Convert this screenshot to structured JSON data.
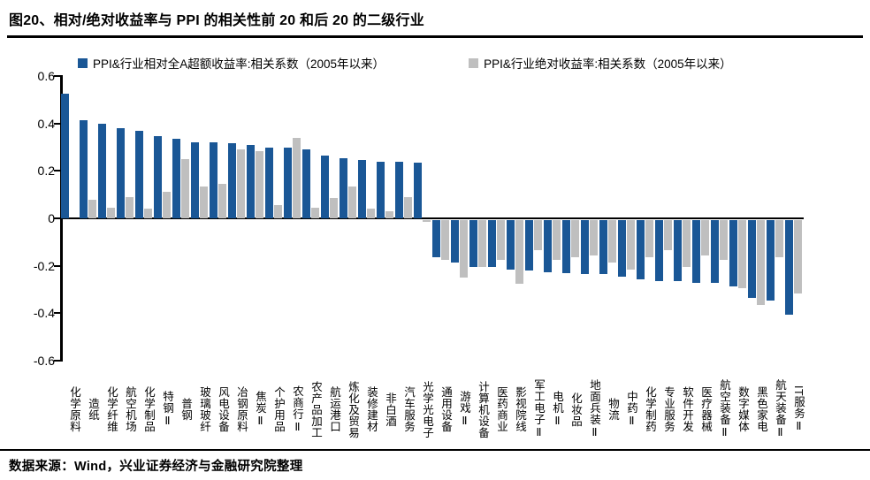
{
  "header": {
    "title": "图20、相对/绝对收益率与 PPI 的相关性前 20 和后 20 的二级行业"
  },
  "footer": {
    "source": "数据来源：Wind，兴业证券经济与金融研究院整理"
  },
  "colors": {
    "relative_series": "#1A5796",
    "absolute_series": "#BFBFBF",
    "axis": "#000000",
    "background": "#FFFFFF"
  },
  "chart_data": {
    "type": "bar",
    "title": "",
    "grid": false,
    "legend_position": "top",
    "ylim": [
      -0.6,
      0.6
    ],
    "ytick_labels": [
      "0.6",
      "0.4",
      "0.2",
      "0",
      "-0.2",
      "-0.4",
      "-0.6"
    ],
    "yticks": [
      0.6,
      0.4,
      0.2,
      0,
      -0.2,
      -0.4,
      -0.6
    ],
    "categories": [
      "化学原料",
      "造纸",
      "化学纤维",
      "航空机场",
      "化学制品",
      "特钢Ⅱ",
      "普钢",
      "玻璃玻纤",
      "风电设备",
      "冶钢原料",
      "焦炭Ⅱ",
      "个护用品",
      "农商行Ⅱ",
      "农产品加工",
      "航运港口",
      "炼化及贸易",
      "装修建材",
      "非白酒",
      "汽车服务",
      "光学光电子",
      "通用设备",
      "游戏Ⅱ",
      "计算机设备",
      "医药商业",
      "影视院线",
      "军工电子Ⅱ",
      "电机Ⅱ",
      "化妆品",
      "地面兵装Ⅱ",
      "物流",
      "中药Ⅱ",
      "化学制药",
      "专业服务",
      "软件开发",
      "医疗器械",
      "航空装备Ⅱ",
      "数字媒体",
      "黑色家电",
      "航天装备Ⅱ",
      "IT服务Ⅱ"
    ],
    "series": [
      {
        "name": "PPI&行业相对全A超额收益率:相关系数（2005年以来）",
        "color_key": "relative_series",
        "values": [
          0.525,
          0.415,
          0.4,
          0.38,
          0.37,
          0.345,
          0.335,
          0.32,
          0.32,
          0.315,
          0.31,
          0.3,
          0.3,
          0.29,
          0.265,
          0.255,
          0.245,
          0.24,
          0.24,
          0.235,
          -0.16,
          -0.18,
          -0.2,
          -0.2,
          -0.21,
          -0.215,
          -0.22,
          -0.225,
          -0.23,
          -0.23,
          -0.24,
          -0.25,
          -0.26,
          -0.26,
          -0.265,
          -0.265,
          -0.28,
          -0.33,
          -0.34,
          -0.4
        ]
      },
      {
        "name": "PPI&行业绝对收益率:相关系数（2005年以来）",
        "color_key": "absolute_series",
        "values": [
          0.0,
          0.08,
          0.045,
          0.09,
          0.04,
          0.11,
          0.25,
          0.135,
          0.145,
          0.29,
          0.285,
          0.055,
          0.34,
          0.045,
          0.085,
          0.135,
          0.04,
          0.03,
          0.09,
          -0.01,
          -0.17,
          -0.245,
          -0.2,
          -0.17,
          -0.27,
          -0.13,
          -0.17,
          -0.16,
          -0.15,
          -0.18,
          -0.21,
          -0.16,
          -0.13,
          -0.2,
          -0.15,
          -0.17,
          -0.29,
          -0.36,
          -0.16,
          -0.31
        ]
      }
    ]
  }
}
